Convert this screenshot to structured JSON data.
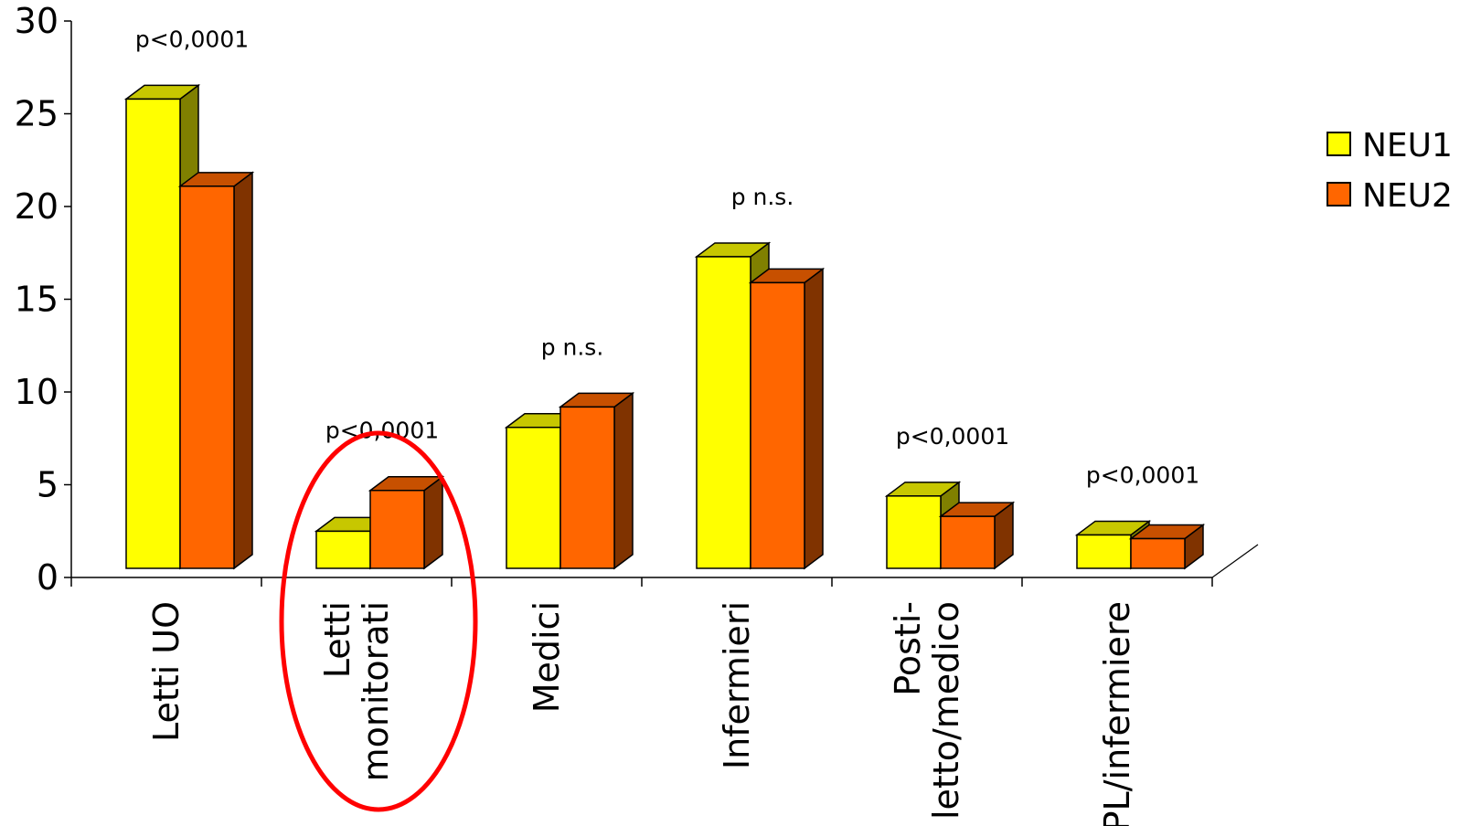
{
  "chart_data": {
    "type": "bar",
    "categories": [
      [
        "Letti UO"
      ],
      [
        "Letti",
        "monitorati"
      ],
      [
        "Medici"
      ],
      [
        "Infermieri"
      ],
      [
        "Posti-",
        "letto/medico"
      ],
      [
        "PL/infermiere"
      ]
    ],
    "series": [
      {
        "name": "NEU1",
        "color": "#FFFF00",
        "values": [
          25.3,
          2.0,
          7.6,
          16.8,
          3.9,
          1.8
        ]
      },
      {
        "name": "NEU2",
        "color": "#FF6600",
        "values": [
          20.6,
          4.2,
          8.7,
          15.4,
          2.8,
          1.6
        ]
      }
    ],
    "annotations": [
      "p<0,0001",
      "p<0,0001",
      "p n.s.",
      "p n.s.",
      "p<0,0001",
      "p<0,0001"
    ],
    "yticks": [
      "0",
      "5",
      "10",
      "15",
      "20",
      "25",
      "30"
    ],
    "ylim": [
      0,
      30
    ],
    "legend_position": "right",
    "highlight_category_index": 1,
    "highlight_color": "#FF0000",
    "grid": false
  }
}
